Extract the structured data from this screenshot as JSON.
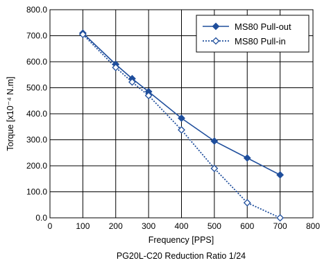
{
  "chart_data": {
    "type": "line",
    "x": [
      100,
      200,
      250,
      300,
      400,
      500,
      600,
      700
    ],
    "series": [
      {
        "name": "MS80  Pull-out",
        "values": [
          710,
          590,
          535,
          485,
          383,
          295,
          230,
          165
        ],
        "color": "#1f4e9c",
        "line_style": "solid",
        "marker": "filled-diamond"
      },
      {
        "name": "MS80  Pull-in",
        "values": [
          705,
          578,
          522,
          470,
          338,
          190,
          58,
          0
        ],
        "color": "#1f4e9c",
        "line_style": "dotted",
        "marker": "open-diamond"
      }
    ],
    "xlabel": "Frequency [PPS]",
    "ylabel": "Torque [x10⁻⁴ N.m]",
    "caption": "PG20L-C20 Reduction Ratio 1/24",
    "xlim": [
      0,
      800
    ],
    "ylim": [
      0,
      800
    ],
    "xticks": [
      0,
      100,
      200,
      300,
      400,
      500,
      600,
      700,
      800
    ],
    "yticks": [
      0,
      100,
      200,
      300,
      400,
      500,
      600,
      700,
      800
    ],
    "ytick_labels": [
      "0.0",
      "100.0",
      "200.0",
      "300.0",
      "400.0",
      "500.0",
      "600.0",
      "700.0",
      "800.0"
    ],
    "grid": true,
    "legend_position": "top-right"
  }
}
